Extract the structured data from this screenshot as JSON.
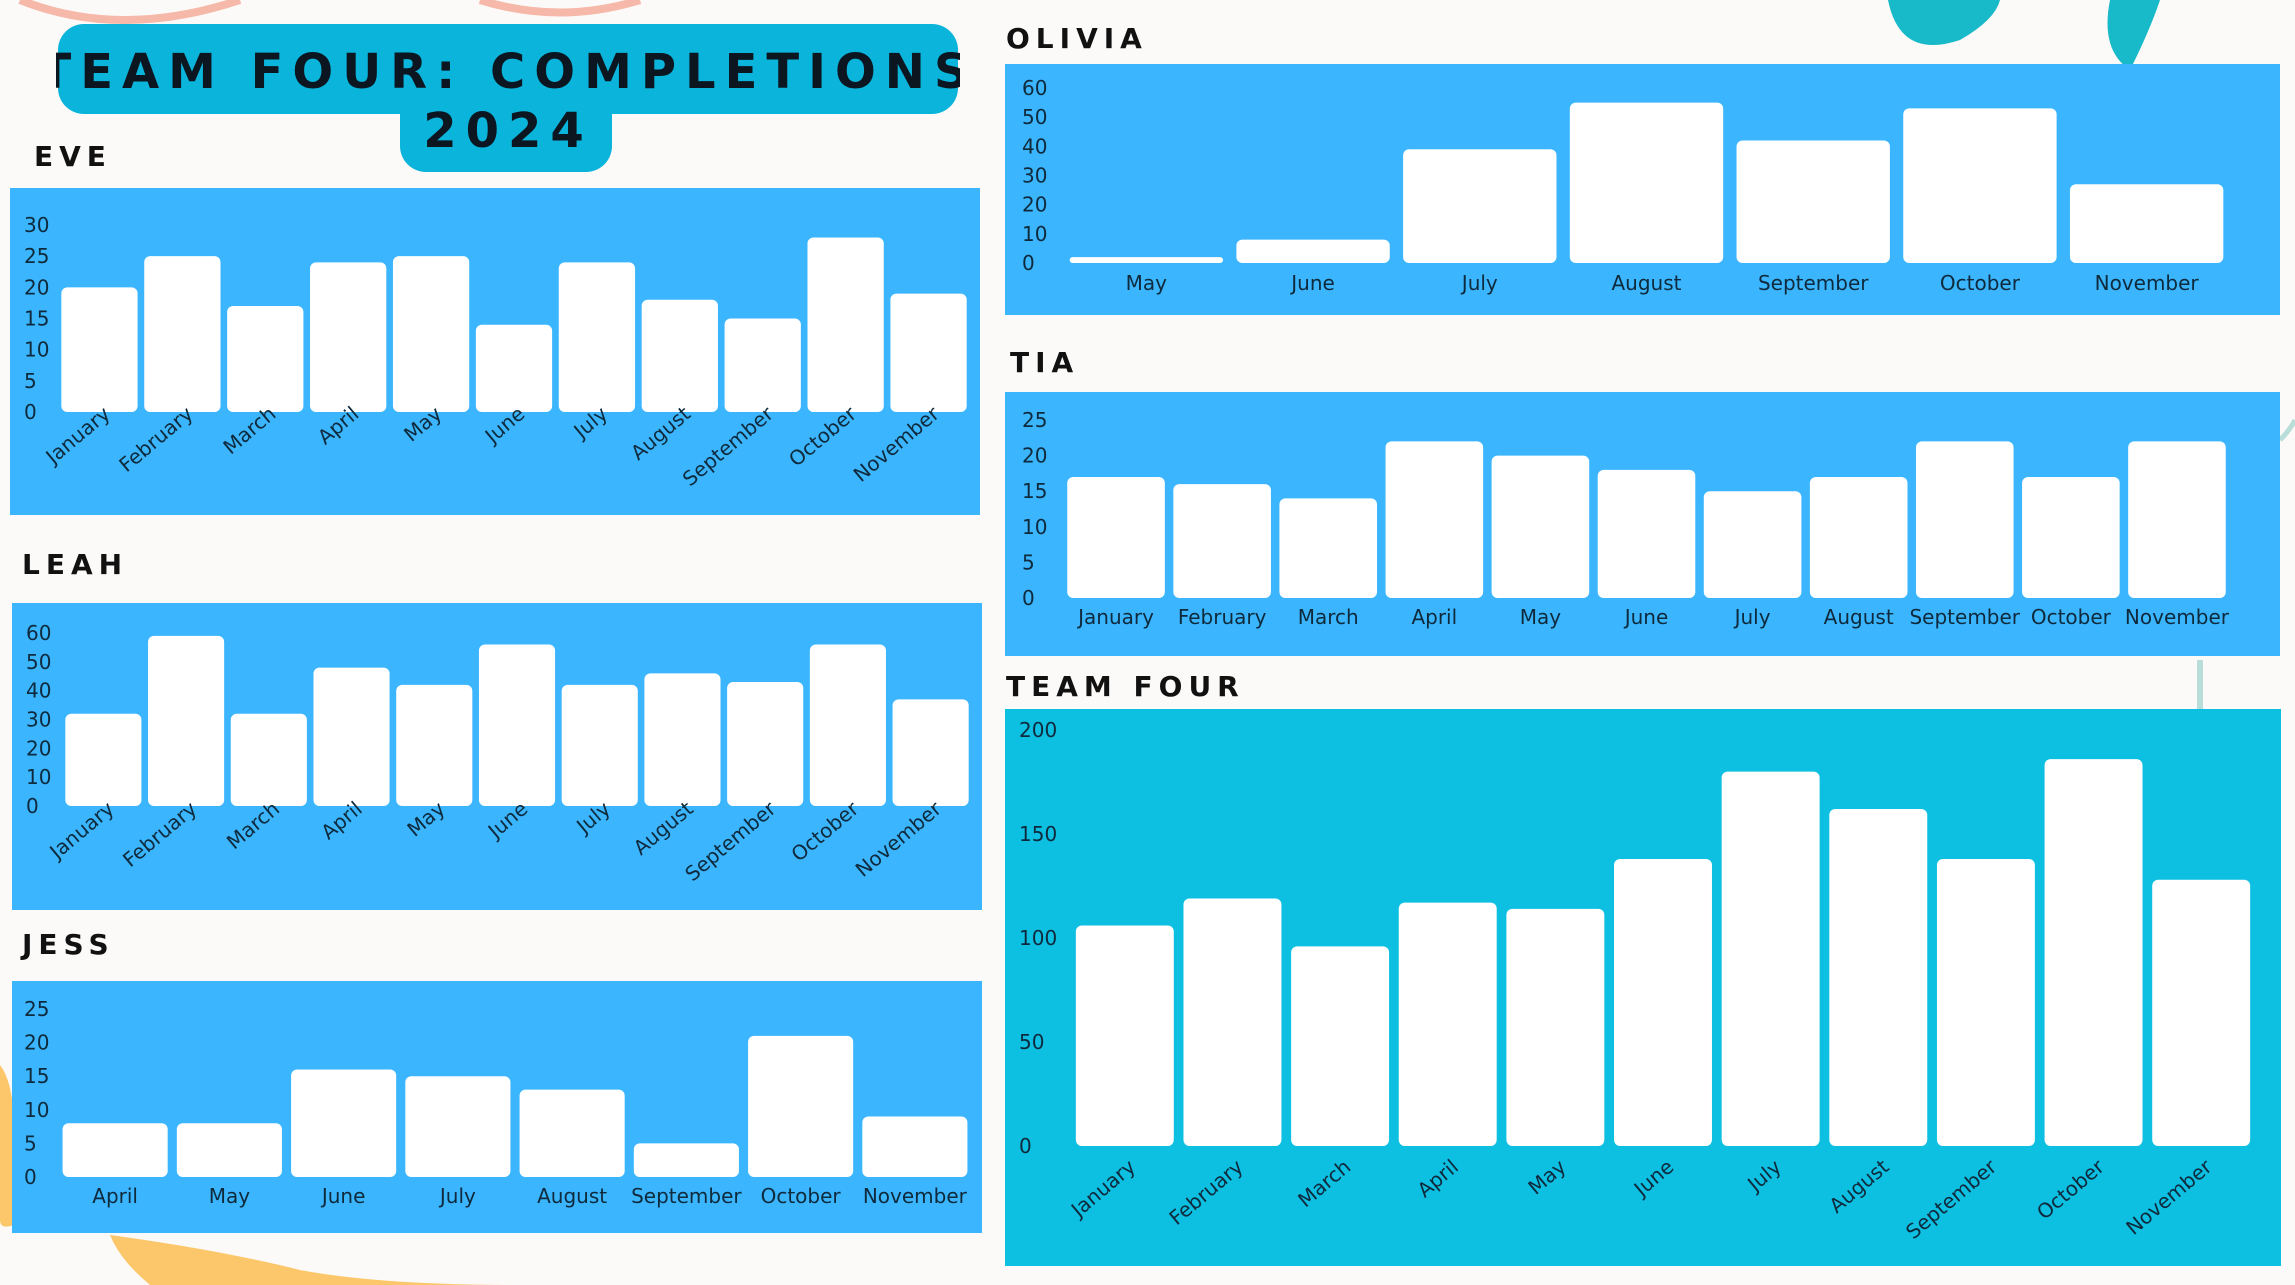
{
  "page": {
    "title": "TEAM FOUR: COMPLETIONS 2024",
    "title_line1": "TEAM FOUR: COMPLETIONS",
    "title_line2": "2024"
  },
  "colors": {
    "panel_blue": "#3bb5fd",
    "panel_teal": "#0dbfe1",
    "title_bg": "#0ab4da",
    "bar": "#ffffff",
    "background": "#fcfaf8"
  },
  "chart_data": [
    {
      "id": "eve",
      "name": "EVE",
      "type": "bar",
      "ylim": [
        0,
        30
      ],
      "yticks": [
        0,
        5,
        10,
        15,
        20,
        25,
        30
      ],
      "rotate_labels": true,
      "categories": [
        "January",
        "February",
        "March",
        "April",
        "May",
        "June",
        "July",
        "August",
        "September",
        "October",
        "November"
      ],
      "values": [
        20,
        25,
        17,
        24,
        25,
        14,
        24,
        18,
        15,
        28,
        19
      ]
    },
    {
      "id": "leah",
      "name": "LEAH",
      "type": "bar",
      "ylim": [
        0,
        60
      ],
      "yticks": [
        0,
        10,
        20,
        30,
        40,
        50,
        60
      ],
      "rotate_labels": true,
      "categories": [
        "January",
        "February",
        "March",
        "April",
        "May",
        "June",
        "July",
        "August",
        "September",
        "October",
        "November"
      ],
      "values": [
        32,
        59,
        32,
        48,
        42,
        56,
        42,
        46,
        43,
        56,
        37
      ]
    },
    {
      "id": "jess",
      "name": "JESS",
      "type": "bar",
      "ylim": [
        0,
        25
      ],
      "yticks": [
        0,
        5,
        10,
        15,
        20,
        25
      ],
      "rotate_labels": false,
      "categories": [
        "April",
        "May",
        "June",
        "July",
        "August",
        "September",
        "October",
        "November"
      ],
      "values": [
        8,
        8,
        16,
        15,
        13,
        5,
        21,
        9
      ]
    },
    {
      "id": "olivia",
      "name": "OLIVIA",
      "type": "bar",
      "ylim": [
        0,
        60
      ],
      "yticks": [
        0,
        10,
        20,
        30,
        40,
        50,
        60
      ],
      "rotate_labels": false,
      "categories": [
        "May",
        "June",
        "July",
        "August",
        "September",
        "October",
        "November"
      ],
      "values": [
        2,
        8,
        39,
        55,
        42,
        53,
        27
      ]
    },
    {
      "id": "tia",
      "name": "TIA",
      "type": "bar",
      "ylim": [
        0,
        25
      ],
      "yticks": [
        0,
        5,
        10,
        15,
        20,
        25
      ],
      "rotate_labels": false,
      "categories": [
        "January",
        "February",
        "March",
        "April",
        "May",
        "June",
        "July",
        "August",
        "September",
        "October",
        "November"
      ],
      "values": [
        17,
        16,
        14,
        22,
        20,
        18,
        15,
        17,
        22,
        17,
        22
      ]
    },
    {
      "id": "teamfour",
      "name": "TEAM FOUR",
      "type": "bar",
      "ylim": [
        0,
        200
      ],
      "yticks": [
        0,
        50,
        100,
        150,
        200
      ],
      "rotate_labels": true,
      "categories": [
        "January",
        "February",
        "March",
        "April",
        "May",
        "June",
        "July",
        "August",
        "September",
        "October",
        "November"
      ],
      "values": [
        106,
        119,
        96,
        117,
        114,
        138,
        180,
        162,
        138,
        186,
        128
      ]
    }
  ]
}
